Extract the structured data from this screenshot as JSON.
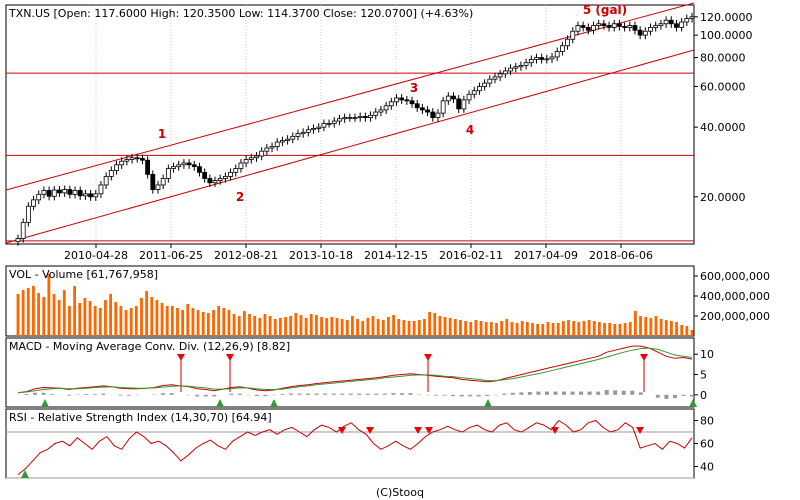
{
  "copyright": "(C)Stooq",
  "chart_data": [
    {
      "type": "candlestick",
      "title": "TXN.US [Open: 117.6000  High: 120.3500  Low: 114.3700  Close: 120.0700] (+4.63%)",
      "scale": "log",
      "ylim": [
        12.5,
        135
      ],
      "y_ticks": [
        {
          "v": 120,
          "label": "120.0000"
        },
        {
          "v": 100,
          "label": "100.0000"
        },
        {
          "v": 80,
          "label": "80.0000"
        },
        {
          "v": 60,
          "label": "60.0000"
        },
        {
          "v": 40,
          "label": "40.0000"
        },
        {
          "v": 20,
          "label": "20.0000"
        }
      ],
      "x_ticks": [
        "2010-04-28",
        "2011-06-25",
        "2012-08-21",
        "2013-10-18",
        "2014-12-15",
        "2016-02-11",
        "2017-04-09",
        "2018-06-06"
      ],
      "horizontal_lines": [
        68.5,
        30.2,
        12.9
      ],
      "waves": [
        {
          "label": "1",
          "color": "#cc0000"
        },
        {
          "label": "2",
          "color": "#cc0000"
        },
        {
          "label": "3",
          "color": "#cc0000"
        },
        {
          "label": "4",
          "color": "#cc0000"
        },
        {
          "label": "5 (gal)",
          "color": "#cc0000"
        }
      ],
      "close_series": [
        13.2,
        15.5,
        18.2,
        19.4,
        20.5,
        21.3,
        20.1,
        21.4,
        20.8,
        21.5,
        20.5,
        21.3,
        20.2,
        20.6,
        20.0,
        20.6,
        22.5,
        24.5,
        26.0,
        27.5,
        28.5,
        29.0,
        29.5,
        29.3,
        28.8,
        25.0,
        21.5,
        22.5,
        24.0,
        26.5,
        27.0,
        27.5,
        28.0,
        27.5,
        27.0,
        25.5,
        24.0,
        23.0,
        23.5,
        24.0,
        24.5,
        25.5,
        26.5,
        28.0,
        29.0,
        29.5,
        30.0,
        31.5,
        32.5,
        33.0,
        34.5,
        35.0,
        35.5,
        36.5,
        37.5,
        38.0,
        39.0,
        39.5,
        40.0,
        41.5,
        41.5,
        42.5,
        43.5,
        44.0,
        44.0,
        44.0,
        44.5,
        44.0,
        45.0,
        46.5,
        47.5,
        49.5,
        51.5,
        53.5,
        52.5,
        52.0,
        50.5,
        48.5,
        47.5,
        46.5,
        44.0,
        46.0,
        52.0,
        54.5,
        53.0,
        48.0,
        52.5,
        55.5,
        57.5,
        60.0,
        62.0,
        64.5,
        66.0,
        68.0,
        70.0,
        72.0,
        73.0,
        74.0,
        76.0,
        78.5,
        80.0,
        78.5,
        79.0,
        80.5,
        85.0,
        90.0,
        96.0,
        104.0,
        110.0,
        108.0,
        105.0,
        110.0,
        112.0,
        110.0,
        108.0,
        112.0,
        109.0,
        108.0,
        110.0,
        105.0,
        100.0,
        104.0,
        108.0,
        110.0,
        112.0,
        116.0,
        112.0,
        108.0,
        114.0,
        118.0,
        120.0
      ],
      "value_labels": []
    },
    {
      "type": "bar",
      "title": "VOL - Volume [61,767,958]",
      "ylim": [
        0,
        700000000
      ],
      "y_ticks": [
        {
          "v": 600000000,
          "label": "600,000,000"
        },
        {
          "v": 400000000,
          "label": "400,000,000"
        },
        {
          "v": 200000000,
          "label": "200,000,000"
        }
      ],
      "color": "#ff6600",
      "values": [
        420000000,
        460000000,
        480000000,
        500000000,
        430000000,
        390000000,
        620000000,
        420000000,
        360000000,
        460000000,
        300000000,
        500000000,
        330000000,
        380000000,
        350000000,
        300000000,
        280000000,
        360000000,
        420000000,
        340000000,
        300000000,
        260000000,
        280000000,
        300000000,
        380000000,
        450000000,
        390000000,
        360000000,
        330000000,
        300000000,
        300000000,
        280000000,
        260000000,
        320000000,
        280000000,
        260000000,
        240000000,
        230000000,
        260000000,
        300000000,
        280000000,
        260000000,
        220000000,
        200000000,
        250000000,
        220000000,
        200000000,
        180000000,
        220000000,
        200000000,
        170000000,
        180000000,
        190000000,
        200000000,
        230000000,
        210000000,
        180000000,
        220000000,
        210000000,
        190000000,
        180000000,
        190000000,
        180000000,
        170000000,
        160000000,
        200000000,
        170000000,
        150000000,
        180000000,
        200000000,
        170000000,
        160000000,
        190000000,
        210000000,
        170000000,
        160000000,
        150000000,
        150000000,
        160000000,
        170000000,
        240000000,
        230000000,
        200000000,
        190000000,
        180000000,
        170000000,
        160000000,
        150000000,
        140000000,
        160000000,
        150000000,
        140000000,
        140000000,
        130000000,
        150000000,
        170000000,
        140000000,
        130000000,
        150000000,
        140000000,
        130000000,
        120000000,
        120000000,
        140000000,
        130000000,
        130000000,
        150000000,
        160000000,
        150000000,
        140000000,
        150000000,
        160000000,
        150000000,
        140000000,
        130000000,
        130000000,
        120000000,
        120000000,
        130000000,
        140000000,
        250000000,
        200000000,
        190000000,
        180000000,
        200000000,
        170000000,
        160000000,
        150000000,
        140000000,
        110000000,
        100000000,
        60000000
      ]
    },
    {
      "type": "line",
      "title": "MACD - Moving Average Conv. Div. (12,26,9) [8.82]",
      "ylim": [
        -3,
        14
      ],
      "y_ticks": [
        {
          "v": 10,
          "label": "10"
        },
        {
          "v": 5,
          "label": "5"
        },
        {
          "v": 0,
          "label": "0"
        }
      ],
      "series": [
        {
          "color": "#cc0000",
          "values": [
            0.5,
            0.8,
            1.5,
            1.8,
            1.7,
            1.6,
            1.3,
            1.6,
            1.8,
            2.0,
            2.2,
            2.0,
            1.6,
            1.5,
            1.5,
            1.6,
            1.8,
            2.3,
            2.5,
            2.2,
            2.0,
            1.5,
            1.3,
            1.0,
            1.4,
            1.8,
            2.0,
            1.6,
            1.2,
            1.0,
            1.2,
            1.6,
            2.0,
            2.3,
            2.5,
            2.8,
            3.0,
            3.2,
            3.4,
            3.6,
            3.8,
            4.0,
            4.2,
            4.5,
            4.8,
            5.0,
            5.2,
            5.0,
            4.8,
            4.6,
            4.4,
            4.2,
            3.8,
            3.6,
            3.4,
            3.2,
            3.4,
            4.0,
            4.5,
            5.0,
            5.5,
            6.0,
            6.5,
            7.0,
            7.5,
            8.0,
            8.5,
            9.0,
            9.5,
            10.5,
            11.0,
            11.5,
            12.0,
            12.0,
            11.5,
            10.5,
            9.5,
            9.0,
            9.2,
            8.8
          ]
        },
        {
          "color": "#339933",
          "values": [
            0.5,
            0.7,
            1.0,
            1.3,
            1.5,
            1.6,
            1.5,
            1.5,
            1.6,
            1.8,
            1.9,
            2.0,
            1.8,
            1.7,
            1.6,
            1.6,
            1.7,
            1.9,
            2.1,
            2.2,
            2.1,
            1.9,
            1.7,
            1.4,
            1.4,
            1.5,
            1.7,
            1.7,
            1.5,
            1.3,
            1.3,
            1.4,
            1.7,
            2.0,
            2.2,
            2.5,
            2.7,
            2.9,
            3.1,
            3.3,
            3.5,
            3.7,
            3.9,
            4.2,
            4.4,
            4.6,
            4.8,
            4.9,
            4.9,
            4.8,
            4.6,
            4.5,
            4.2,
            4.0,
            3.8,
            3.5,
            3.5,
            3.7,
            4.0,
            4.4,
            4.8,
            5.2,
            5.7,
            6.2,
            6.7,
            7.2,
            7.7,
            8.2,
            8.7,
            9.3,
            9.9,
            10.5,
            11.0,
            11.4,
            11.5,
            11.2,
            10.5,
            9.8,
            9.5,
            9.2
          ]
        }
      ],
      "histogram": [
        0.0,
        0.2,
        0.5,
        0.5,
        0.2,
        0.0,
        -0.2,
        0.1,
        0.2,
        0.2,
        0.3,
        0.0,
        -0.2,
        -0.2,
        -0.1,
        0.0,
        0.1,
        0.4,
        0.4,
        0.0,
        -0.1,
        -0.4,
        -0.4,
        -0.4,
        0.0,
        0.3,
        0.3,
        -0.1,
        -0.3,
        -0.3,
        -0.1,
        0.2,
        0.3,
        0.3,
        0.3,
        0.3,
        0.3,
        0.3,
        0.3,
        0.3,
        0.3,
        0.3,
        0.3,
        0.3,
        0.4,
        0.4,
        0.4,
        0.1,
        -0.1,
        -0.2,
        -0.2,
        -0.3,
        -0.4,
        -0.4,
        -0.4,
        -0.3,
        -0.1,
        0.3,
        0.5,
        0.6,
        0.7,
        0.8,
        0.8,
        0.8,
        0.8,
        0.8,
        0.8,
        0.8,
        0.8,
        1.2,
        1.1,
        1.0,
        1.0,
        0.6,
        0.0,
        -0.7,
        -1.0,
        -0.8,
        -0.3,
        -0.4
      ]
    },
    {
      "type": "line",
      "title": "RSI - Relative Strength Index (14,30,70) [64.94]",
      "ylim": [
        30,
        90
      ],
      "y_ticks": [
        {
          "v": 80,
          "label": "80"
        },
        {
          "v": 60,
          "label": "60"
        },
        {
          "v": 40,
          "label": "40"
        }
      ],
      "threshold_lines": [
        70,
        30
      ],
      "series": [
        {
          "color": "#cc0000",
          "values": [
            33,
            38,
            45,
            52,
            55,
            60,
            62,
            58,
            65,
            60,
            55,
            62,
            66,
            58,
            55,
            64,
            70,
            66,
            60,
            62,
            58,
            52,
            45,
            50,
            56,
            60,
            63,
            58,
            55,
            62,
            66,
            70,
            67,
            70,
            72,
            68,
            72,
            74,
            70,
            66,
            72,
            76,
            74,
            70,
            75,
            78,
            72,
            68,
            60,
            55,
            58,
            62,
            58,
            55,
            60,
            66,
            70,
            72,
            75,
            72,
            70,
            74,
            76,
            72,
            70,
            76,
            78,
            72,
            70,
            74,
            78,
            76,
            72,
            80,
            76,
            70,
            72,
            78,
            80,
            74,
            70,
            72,
            78,
            74,
            56,
            58,
            60,
            55,
            62,
            60,
            56,
            65
          ]
        }
      ]
    }
  ]
}
